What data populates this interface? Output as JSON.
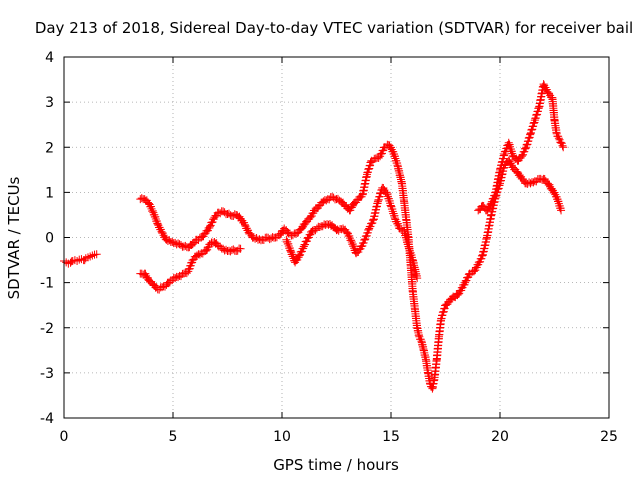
{
  "chart_data": {
    "type": "scatter",
    "title": "Day 213 of 2018, Sidereal Day-to-day VTEC variation (SDTVAR) for receiver bail",
    "xlabel": "GPS time / hours",
    "ylabel": "SDTVAR / TECUs",
    "xlim": [
      0,
      25
    ],
    "ylim": [
      -4,
      4
    ],
    "x_ticks": [
      "0",
      "5",
      "10",
      "15",
      "20",
      "25"
    ],
    "y_ticks": [
      "-4",
      "-3",
      "-2",
      "-1",
      "0",
      "1",
      "2",
      "3",
      "4"
    ],
    "grid": true,
    "legend": "none",
    "marker": "plus",
    "color": "#ff0000",
    "series": [
      {
        "points": [
          [
            0.0,
            -0.52
          ],
          [
            0.1,
            -0.55
          ],
          [
            0.2,
            -0.58
          ],
          [
            0.3,
            -0.56
          ],
          [
            0.4,
            -0.52
          ],
          [
            0.5,
            -0.5
          ],
          [
            0.6,
            -0.52
          ],
          [
            0.7,
            -0.49
          ],
          [
            0.8,
            -0.48
          ],
          [
            0.9,
            -0.5
          ],
          [
            1.0,
            -0.46
          ],
          [
            1.1,
            -0.44
          ],
          [
            1.2,
            -0.42
          ],
          [
            1.3,
            -0.4
          ],
          [
            1.4,
            -0.38
          ],
          [
            1.5,
            -0.37
          ],
          [
            3.5,
            0.85
          ],
          [
            3.7,
            0.85
          ],
          [
            3.9,
            0.75
          ],
          [
            4.1,
            0.55
          ],
          [
            4.3,
            0.3
          ],
          [
            4.5,
            0.1
          ],
          [
            4.7,
            -0.05
          ],
          [
            4.9,
            -0.1
          ],
          [
            5.1,
            -0.12
          ],
          [
            5.3,
            -0.15
          ],
          [
            5.5,
            -0.2
          ],
          [
            5.7,
            -0.22
          ],
          [
            5.9,
            -0.15
          ],
          [
            6.1,
            -0.05
          ],
          [
            6.3,
            0.0
          ],
          [
            6.5,
            0.1
          ],
          [
            6.7,
            0.25
          ],
          [
            6.9,
            0.45
          ],
          [
            7.1,
            0.55
          ],
          [
            7.3,
            0.58
          ],
          [
            7.5,
            0.52
          ],
          [
            7.7,
            0.48
          ],
          [
            7.9,
            0.5
          ],
          [
            8.1,
            0.42
          ],
          [
            8.3,
            0.28
          ],
          [
            8.5,
            0.08
          ],
          [
            8.7,
            0.0
          ],
          [
            8.9,
            -0.05
          ],
          [
            9.1,
            -0.05
          ],
          [
            9.3,
            0.0
          ],
          [
            9.5,
            -0.02
          ],
          [
            9.7,
            0.0
          ],
          [
            9.9,
            0.05
          ],
          [
            10.1,
            0.2
          ],
          [
            10.3,
            0.1
          ],
          [
            10.5,
            0.05
          ],
          [
            10.7,
            0.1
          ],
          [
            10.9,
            0.2
          ],
          [
            11.1,
            0.35
          ],
          [
            11.3,
            0.45
          ],
          [
            11.5,
            0.6
          ],
          [
            11.7,
            0.7
          ],
          [
            11.9,
            0.8
          ],
          [
            12.1,
            0.85
          ],
          [
            12.3,
            0.9
          ],
          [
            12.5,
            0.85
          ],
          [
            12.7,
            0.8
          ],
          [
            12.9,
            0.7
          ],
          [
            13.1,
            0.6
          ],
          [
            13.3,
            0.75
          ],
          [
            13.5,
            0.85
          ],
          [
            13.7,
            0.95
          ],
          [
            13.9,
            1.4
          ],
          [
            14.1,
            1.7
          ],
          [
            14.3,
            1.75
          ],
          [
            14.5,
            1.8
          ],
          [
            14.7,
            2.0
          ],
          [
            14.9,
            2.05
          ],
          [
            15.1,
            1.9
          ],
          [
            15.3,
            1.6
          ],
          [
            15.5,
            1.2
          ],
          [
            15.6,
            0.8
          ],
          [
            15.7,
            0.4
          ],
          [
            15.8,
            0.0
          ],
          [
            15.9,
            -0.6
          ],
          [
            16.0,
            -1.2
          ],
          [
            16.1,
            -1.6
          ],
          [
            16.2,
            -2.0
          ],
          [
            16.3,
            -2.2
          ],
          [
            16.4,
            -2.3
          ],
          [
            16.5,
            -2.5
          ],
          [
            16.6,
            -2.7
          ],
          [
            16.7,
            -3.0
          ],
          [
            16.8,
            -3.25
          ],
          [
            16.9,
            -3.35
          ],
          [
            17.0,
            -3.1
          ],
          [
            17.1,
            -2.7
          ],
          [
            17.2,
            -2.2
          ],
          [
            17.3,
            -1.8
          ],
          [
            17.5,
            -1.5
          ],
          [
            17.8,
            -1.35
          ],
          [
            18.1,
            -1.25
          ],
          [
            18.4,
            -1.0
          ],
          [
            18.6,
            -0.8
          ],
          [
            18.8,
            -0.75
          ],
          [
            19.0,
            -0.6
          ],
          [
            19.2,
            -0.4
          ],
          [
            19.4,
            0.0
          ],
          [
            19.6,
            0.5
          ],
          [
            19.8,
            0.9
          ],
          [
            20.0,
            1.2
          ],
          [
            20.2,
            1.6
          ],
          [
            20.4,
            1.7
          ],
          [
            20.6,
            1.55
          ],
          [
            20.8,
            1.45
          ],
          [
            21.0,
            1.3
          ],
          [
            21.2,
            1.2
          ],
          [
            21.4,
            1.2
          ],
          [
            21.6,
            1.25
          ],
          [
            21.8,
            1.3
          ],
          [
            22.0,
            1.3
          ],
          [
            22.2,
            1.2
          ],
          [
            22.4,
            1.05
          ],
          [
            22.6,
            0.9
          ],
          [
            22.8,
            0.6
          ]
        ]
      },
      {
        "points": [
          [
            3.5,
            -0.8
          ],
          [
            3.7,
            -0.8
          ],
          [
            3.9,
            -0.95
          ],
          [
            4.1,
            -1.05
          ],
          [
            4.3,
            -1.15
          ],
          [
            4.5,
            -1.1
          ],
          [
            4.7,
            -1.05
          ],
          [
            4.9,
            -0.95
          ],
          [
            5.1,
            -0.9
          ],
          [
            5.3,
            -0.85
          ],
          [
            5.5,
            -0.8
          ],
          [
            5.7,
            -0.75
          ],
          [
            5.9,
            -0.5
          ],
          [
            6.1,
            -0.4
          ],
          [
            6.3,
            -0.35
          ],
          [
            6.5,
            -0.3
          ],
          [
            6.7,
            -0.15
          ],
          [
            6.9,
            -0.1
          ],
          [
            7.1,
            -0.2
          ],
          [
            7.3,
            -0.25
          ],
          [
            7.5,
            -0.3
          ],
          [
            7.7,
            -0.28
          ],
          [
            7.9,
            -0.3
          ],
          [
            8.1,
            -0.25
          ],
          [
            10.2,
            -0.05
          ],
          [
            10.4,
            -0.3
          ],
          [
            10.6,
            -0.55
          ],
          [
            10.8,
            -0.4
          ],
          [
            11.0,
            -0.2
          ],
          [
            11.2,
            0.0
          ],
          [
            11.4,
            0.15
          ],
          [
            11.6,
            0.2
          ],
          [
            11.8,
            0.25
          ],
          [
            12.0,
            0.28
          ],
          [
            12.2,
            0.3
          ],
          [
            12.4,
            0.22
          ],
          [
            12.6,
            0.15
          ],
          [
            12.8,
            0.2
          ],
          [
            13.0,
            0.1
          ],
          [
            13.2,
            -0.1
          ],
          [
            13.4,
            -0.35
          ],
          [
            13.6,
            -0.25
          ],
          [
            13.8,
            -0.05
          ],
          [
            14.0,
            0.2
          ],
          [
            14.2,
            0.4
          ],
          [
            14.4,
            0.8
          ],
          [
            14.6,
            1.1
          ],
          [
            14.8,
            1.0
          ],
          [
            15.0,
            0.7
          ],
          [
            15.2,
            0.4
          ],
          [
            15.4,
            0.2
          ],
          [
            15.6,
            0.15
          ],
          [
            15.8,
            -0.2
          ],
          [
            16.0,
            -0.5
          ],
          [
            16.2,
            -0.9
          ],
          [
            19.0,
            0.6
          ],
          [
            19.2,
            0.7
          ],
          [
            19.4,
            0.6
          ],
          [
            19.6,
            0.75
          ],
          [
            19.8,
            1.0
          ],
          [
            20.0,
            1.5
          ],
          [
            20.2,
            1.85
          ],
          [
            20.4,
            2.1
          ],
          [
            20.6,
            1.8
          ],
          [
            20.8,
            1.7
          ],
          [
            21.0,
            1.8
          ],
          [
            21.2,
            2.0
          ],
          [
            21.4,
            2.3
          ],
          [
            21.6,
            2.6
          ],
          [
            21.8,
            2.9
          ],
          [
            22.0,
            3.4
          ],
          [
            22.2,
            3.2
          ],
          [
            22.4,
            3.1
          ],
          [
            22.5,
            2.6
          ],
          [
            22.6,
            2.3
          ],
          [
            22.7,
            2.2
          ],
          [
            22.8,
            2.1
          ],
          [
            22.9,
            2.0
          ]
        ]
      }
    ]
  }
}
